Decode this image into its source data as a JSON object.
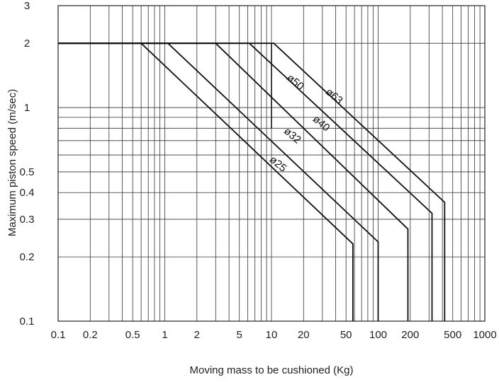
{
  "chart_data": {
    "type": "line",
    "title": "",
    "xlabel": "Moving mass to be cushioned (Kg)",
    "ylabel": "Maximum piston speed (m/sec)",
    "xscale": "log",
    "yscale": "log",
    "xlim": [
      0.1,
      1000
    ],
    "ylim": [
      0.1,
      3
    ],
    "grid": true,
    "legend": "none",
    "x_ticks": [
      {
        "value": 0.1,
        "label": "0.1"
      },
      {
        "value": 0.2,
        "label": "0.2"
      },
      {
        "value": 0.5,
        "label": "0.5"
      },
      {
        "value": 1,
        "label": "1"
      },
      {
        "value": 2,
        "label": "2"
      },
      {
        "value": 5,
        "label": "5"
      },
      {
        "value": 10,
        "label": "10"
      },
      {
        "value": 20,
        "label": "20"
      },
      {
        "value": 50,
        "label": "50"
      },
      {
        "value": 100,
        "label": "100"
      },
      {
        "value": 200,
        "label": "200"
      },
      {
        "value": 500,
        "label": "500"
      },
      {
        "value": 1000,
        "label": "1000"
      }
    ],
    "y_ticks": [
      {
        "value": 0.1,
        "label": "0.1"
      },
      {
        "value": 0.2,
        "label": "0.2"
      },
      {
        "value": 0.3,
        "label": "0.3"
      },
      {
        "value": 0.4,
        "label": "0.4"
      },
      {
        "value": 0.5,
        "label": "0.5"
      },
      {
        "value": 1,
        "label": "1"
      },
      {
        "value": 2,
        "label": "2"
      },
      {
        "value": 3,
        "label": "3"
      }
    ],
    "series": [
      {
        "name": "ø25",
        "x": [
          0.1,
          0.6,
          58,
          58
        ],
        "y": [
          2,
          2,
          0.23,
          0.1
        ]
      },
      {
        "name": "ø32",
        "x": [
          0.1,
          1.07,
          100,
          100
        ],
        "y": [
          2,
          2,
          0.235,
          0.1
        ]
      },
      {
        "name": "ø40",
        "x": [
          0.1,
          3.0,
          190,
          190
        ],
        "y": [
          2,
          2,
          0.27,
          0.1
        ]
      },
      {
        "name": "ø50",
        "x": [
          0.1,
          6.2,
          320,
          320
        ],
        "y": [
          2,
          2,
          0.32,
          0.1
        ]
      },
      {
        "name": "ø63",
        "x": [
          0.1,
          10.5,
          420,
          420
        ],
        "y": [
          2,
          2,
          0.36,
          0.1
        ]
      }
    ],
    "series_labels": [
      {
        "text": "ø25",
        "x": 11.0,
        "y": 0.53
      },
      {
        "text": "ø32",
        "x": 15.0,
        "y": 0.72
      },
      {
        "text": "ø40",
        "x": 28.0,
        "y": 0.82
      },
      {
        "text": "ø50",
        "x": 16.0,
        "y": 1.28
      },
      {
        "text": "ø63",
        "x": 37.0,
        "y": 1.1
      }
    ],
    "annotations": [
      {
        "type": "vertical-line",
        "x": 10,
        "y_from": 0.8,
        "y_to": 2
      }
    ]
  }
}
